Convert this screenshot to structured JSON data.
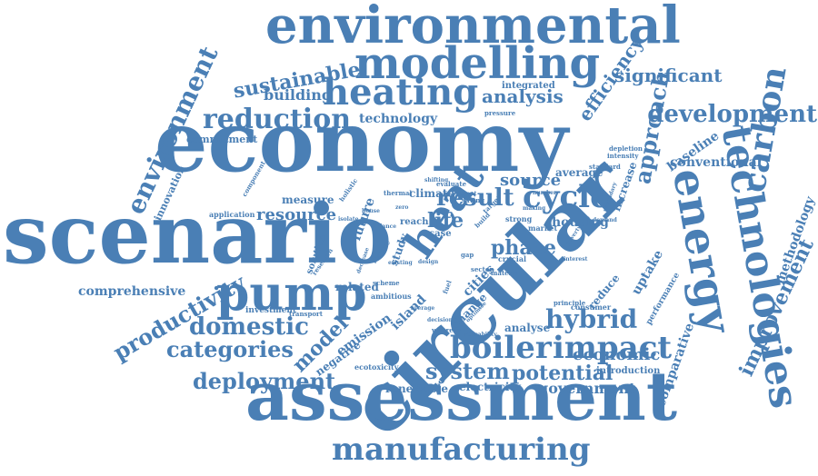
{
  "cloud": {
    "color": "#4a7fb5",
    "background": "#ffffff",
    "words": [
      "economy",
      "scenario",
      "circular",
      "assessment",
      "environmental",
      "modelling",
      "heating",
      "manufacturing",
      "technologies",
      "energy",
      "carbon",
      "heat",
      "pump",
      "cycle",
      "boiler",
      "impact",
      "reduction",
      "development",
      "environment",
      "sustainable",
      "result",
      "system",
      "domestic",
      "categories",
      "deployment",
      "potential",
      "hybrid",
      "approach",
      "productivity",
      "improvement",
      "efficiency",
      "significant",
      "analysis",
      "building",
      "technology",
      "economic",
      "source",
      "phase",
      "resource",
      "life",
      "comprehensive",
      "model",
      "government",
      "renewable",
      "electricity",
      "methodology",
      "comparative",
      "conventional",
      "baseline",
      "innovation",
      "commitment",
      "measure",
      "increase",
      "housing",
      "reduce",
      "uptake",
      "emission",
      "negative",
      "analyse",
      "average",
      "cities",
      "island",
      "investment",
      "ecotoxicity",
      "integrated",
      "solution",
      "future",
      "climate",
      "application",
      "consumer",
      "introduction",
      "component",
      "transport",
      "performance",
      "change",
      "related",
      "study",
      "reach",
      "strong",
      "depletion",
      "intensity",
      "standard",
      "pressure",
      "target",
      "evaluate",
      "isolate",
      "holistic",
      "thermal",
      "crucial",
      "market",
      "decision",
      "principle",
      "reusability",
      "whereas",
      "sector",
      "interest",
      "material",
      "saving",
      "require",
      "case",
      "number",
      "design",
      "scheme",
      "ambitious",
      "zero",
      "shifting",
      "secondary",
      "demand",
      "grant",
      "making",
      "build",
      "research",
      "decrease",
      "balance",
      "poverty",
      "house",
      "existing",
      "average",
      "optimise",
      "gap",
      "fuel"
    ]
  }
}
